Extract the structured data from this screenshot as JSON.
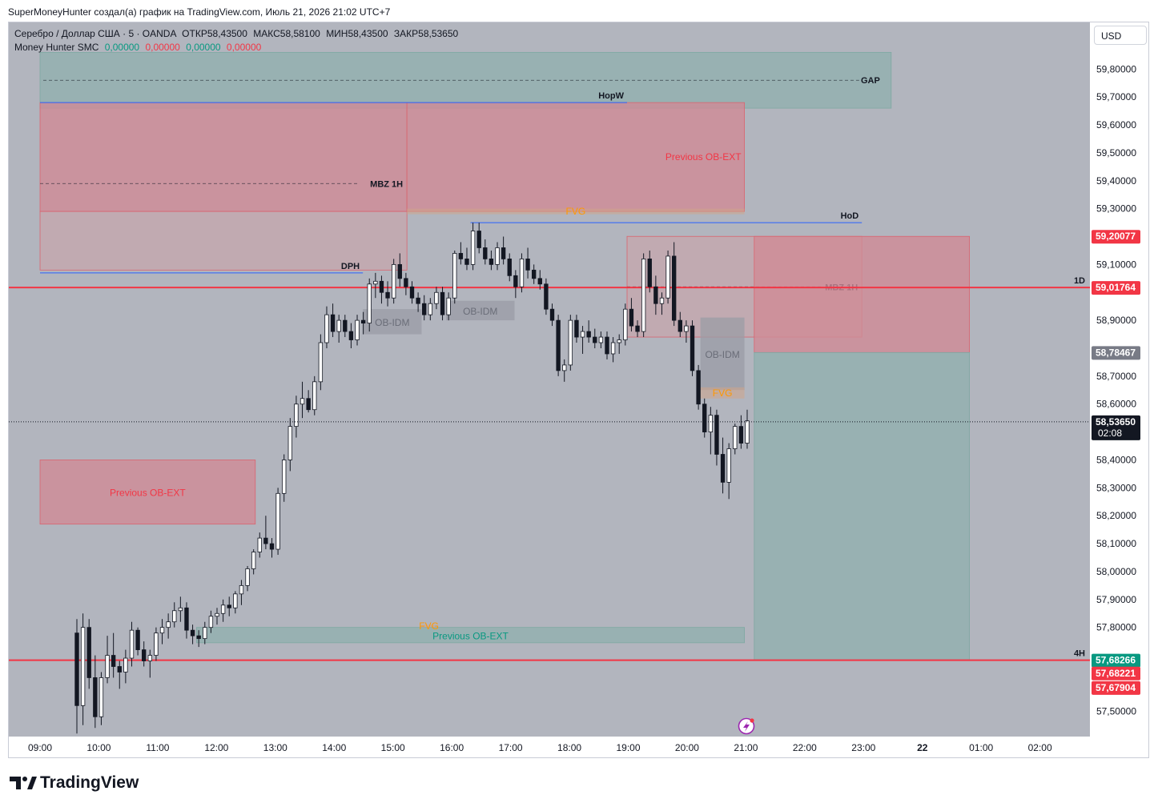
{
  "header": {
    "attribution": "SuperMoneyHunter создал(а) график на TradingView.com, Июль 21, 2026 21:02 UTC+7"
  },
  "legend": {
    "symbol": "Серебро / Доллар США · 5 · OANDA",
    "open_label": "ОТКР",
    "open_value": "58,43500",
    "high_label": "МАКС",
    "high_value": "58,58100",
    "low_label": "МИН",
    "low_value": "58,43500",
    "close_label": "ЗАКР",
    "close_value": "58,53650",
    "indicator_name": "Money Hunter SMC",
    "indicator_values": [
      "0,00000",
      "0,00000",
      "0,00000",
      "0,00000"
    ],
    "indicator_colors": [
      "#089981",
      "#f23645",
      "#089981",
      "#f23645"
    ]
  },
  "currency_button": "USD",
  "branding": "TradingView",
  "colors": {
    "background": "#b2b5be",
    "bull_candle": "#ffffff",
    "bear_candle": "#131722",
    "red_zone": "#d08b96",
    "green_zone": "#8fb0ad",
    "level_red": "#f23645",
    "level_blue": "#2962ff",
    "fvg_text": "#ff9800"
  },
  "chart_data": {
    "type": "candlestick",
    "symbol": "XAGUSD",
    "timeframe": "5",
    "y_axis": {
      "ticks": [
        "59,80000",
        "59,70000",
        "59,60000",
        "59,50000",
        "59,40000",
        "59,30000",
        "59,10000",
        "58,90000",
        "58,70000",
        "58,60000",
        "58,40000",
        "58,30000",
        "58,20000",
        "58,10000",
        "58,00000",
        "57,90000",
        "57,80000",
        "57,50000"
      ],
      "tick_values": [
        59.8,
        59.7,
        59.6,
        59.5,
        59.4,
        59.3,
        59.1,
        58.9,
        58.7,
        58.6,
        58.4,
        58.3,
        58.2,
        58.1,
        58.0,
        57.9,
        57.8,
        57.5
      ]
    },
    "x_axis": {
      "ticks": [
        "09:00",
        "10:00",
        "11:00",
        "12:00",
        "13:00",
        "14:00",
        "15:00",
        "16:00",
        "17:00",
        "18:00",
        "19:00",
        "20:00",
        "21:00",
        "22:00",
        "23:00",
        "22",
        "01:00",
        "02:00"
      ]
    },
    "price_labels": [
      {
        "text": "59,20077",
        "value": 59.20077,
        "color": "#f23645"
      },
      {
        "text": "59,01764",
        "value": 59.01764,
        "color": "#f23645"
      },
      {
        "text": "58,78467",
        "value": 58.78467,
        "color": "#787b86"
      },
      {
        "text": "57,68266",
        "value": 57.68266,
        "color": "#089981"
      },
      {
        "text": "57,68221",
        "value": 57.68221,
        "color": "#f23645"
      },
      {
        "text": "57,67904",
        "value": 57.67904,
        "color": "#f23645"
      }
    ],
    "last_price": {
      "text": "58,53650",
      "value": 58.5365,
      "countdown": "02:08"
    },
    "levels": [
      {
        "label": "HopW",
        "value": 59.68,
        "from": "09:00",
        "to": "19:00",
        "color": "#2962ff"
      },
      {
        "label": "HoD",
        "value": 59.25,
        "from": "16:20",
        "to": "23:00",
        "color": "#2962ff"
      },
      {
        "label": "DPH",
        "value": 59.07,
        "from": "09:00",
        "to": "14:30",
        "color": "#2962ff"
      },
      {
        "label": "1D",
        "value": 59.01764,
        "color": "#f23645"
      },
      {
        "label": "4H",
        "value": 57.68266,
        "color": "#f23645"
      }
    ],
    "zones": [
      {
        "label": "GAP",
        "top": 59.86,
        "bottom": 59.66,
        "from": "09:00",
        "to": "23:30",
        "kind": "green"
      },
      {
        "label": "MBZ 1H",
        "top": 59.68,
        "bottom": 59.29,
        "from": "09:00",
        "to": "15:15",
        "kind": "red",
        "midline": 59.39
      },
      {
        "label": "Previous OB-EXT",
        "top": 59.68,
        "bottom": 59.29,
        "from": "15:15",
        "to": "21:00",
        "kind": "red"
      },
      {
        "label": "",
        "top": 59.29,
        "bottom": 59.08,
        "from": "09:00",
        "to": "15:15",
        "kind": "red-light"
      },
      {
        "label": "FVG",
        "top": 59.3,
        "bottom": 59.28,
        "from": "15:15",
        "to": "21:00",
        "kind": "fvg"
      },
      {
        "label": "OB-IDM",
        "top": 58.94,
        "bottom": 58.85,
        "from": "14:30",
        "to": "15:30",
        "kind": "grey"
      },
      {
        "label": "OB-IDM",
        "top": 58.97,
        "bottom": 58.9,
        "from": "15:55",
        "to": "17:05",
        "kind": "grey"
      },
      {
        "label": "MBZ 1H",
        "top": 59.20077,
        "bottom": 58.84,
        "from": "19:00",
        "to": "23:00",
        "kind": "red-light",
        "midline": 59.02
      },
      {
        "label": "",
        "top": 59.20077,
        "bottom": 58.78467,
        "from": "21:10",
        "to": "00:50",
        "kind": "red"
      },
      {
        "label": "OB-IDM",
        "top": 58.91,
        "bottom": 58.65,
        "from": "20:15",
        "to": "21:00",
        "kind": "grey"
      },
      {
        "label": "FVG",
        "top": 58.66,
        "bottom": 58.62,
        "from": "20:15",
        "to": "21:00",
        "kind": "fvg"
      },
      {
        "label": "",
        "top": 58.78467,
        "bottom": 57.68266,
        "from": "21:10",
        "to": "00:50",
        "kind": "green"
      },
      {
        "label": "Previous OB-EXT",
        "top": 58.4,
        "bottom": 58.17,
        "from": "09:00",
        "to": "12:40",
        "kind": "red"
      },
      {
        "label": "Previous OB-EXT",
        "top": 57.8,
        "bottom": 57.745,
        "from": "11:40",
        "to": "21:00",
        "kind": "green"
      },
      {
        "label": "FVG",
        "top": 57.81,
        "bottom": 57.8,
        "from": "15:30",
        "to": "15:45",
        "kind": "fvg"
      }
    ],
    "candles_approx": [
      [
        57.78,
        57.83,
        57.42,
        57.52
      ],
      [
        57.52,
        57.85,
        57.45,
        57.8
      ],
      [
        57.8,
        57.83,
        57.58,
        57.62
      ],
      [
        57.62,
        57.7,
        57.44,
        57.48
      ],
      [
        57.48,
        57.64,
        57.45,
        57.62
      ],
      [
        57.62,
        57.77,
        57.6,
        57.7
      ],
      [
        57.7,
        57.78,
        57.62,
        57.66
      ],
      [
        57.66,
        57.68,
        57.58,
        57.64
      ],
      [
        57.64,
        57.72,
        57.6,
        57.69
      ],
      [
        57.69,
        57.82,
        57.66,
        57.79
      ],
      [
        57.79,
        57.8,
        57.7,
        57.72
      ],
      [
        57.72,
        57.75,
        57.66,
        57.68
      ],
      [
        57.68,
        57.72,
        57.62,
        57.7
      ],
      [
        57.7,
        57.8,
        57.68,
        57.78
      ],
      [
        57.78,
        57.83,
        57.74,
        57.8
      ],
      [
        57.8,
        57.85,
        57.76,
        57.82
      ],
      [
        57.82,
        57.89,
        57.8,
        57.86
      ],
      [
        57.86,
        57.91,
        57.82,
        57.87
      ],
      [
        57.87,
        57.89,
        57.76,
        57.79
      ],
      [
        57.79,
        57.81,
        57.74,
        57.77
      ],
      [
        57.77,
        57.79,
        57.73,
        57.76
      ],
      [
        57.76,
        57.82,
        57.74,
        57.8
      ],
      [
        57.8,
        57.86,
        57.78,
        57.84
      ],
      [
        57.84,
        57.87,
        57.81,
        57.85
      ],
      [
        57.85,
        57.9,
        57.82,
        57.88
      ],
      [
        57.88,
        57.91,
        57.84,
        57.87
      ],
      [
        57.87,
        57.93,
        57.85,
        57.92
      ],
      [
        57.92,
        57.97,
        57.88,
        57.95
      ],
      [
        57.95,
        58.02,
        57.93,
        58.01
      ],
      [
        58.01,
        58.08,
        57.99,
        58.07
      ],
      [
        58.07,
        58.14,
        58.05,
        58.12
      ],
      [
        58.12,
        58.2,
        58.08,
        58.1
      ],
      [
        58.1,
        58.12,
        58.05,
        58.08
      ],
      [
        58.08,
        58.3,
        58.06,
        58.28
      ],
      [
        58.28,
        58.42,
        58.25,
        58.4
      ],
      [
        58.4,
        58.55,
        58.36,
        58.52
      ],
      [
        58.52,
        58.63,
        58.48,
        58.6
      ],
      [
        58.6,
        58.68,
        58.55,
        58.62
      ],
      [
        58.62,
        58.65,
        58.57,
        58.58
      ],
      [
        58.58,
        58.7,
        58.56,
        58.68
      ],
      [
        58.68,
        58.85,
        58.65,
        58.82
      ],
      [
        58.82,
        58.95,
        58.8,
        58.92
      ],
      [
        58.92,
        58.96,
        58.84,
        58.86
      ],
      [
        58.86,
        58.92,
        58.82,
        58.9
      ],
      [
        58.9,
        58.92,
        58.84,
        58.86
      ],
      [
        58.86,
        58.89,
        58.8,
        58.83
      ],
      [
        58.83,
        58.92,
        58.81,
        58.9
      ],
      [
        58.9,
        58.93,
        58.85,
        58.89
      ],
      [
        58.89,
        59.05,
        58.86,
        59.03
      ],
      [
        59.03,
        59.07,
        58.98,
        59.04
      ],
      [
        59.04,
        59.06,
        58.96,
        59.0
      ],
      [
        59.0,
        59.04,
        58.95,
        58.98
      ],
      [
        58.98,
        59.12,
        58.96,
        59.1
      ],
      [
        59.1,
        59.14,
        59.02,
        59.05
      ],
      [
        59.05,
        59.07,
        58.99,
        59.02
      ],
      [
        59.02,
        59.04,
        58.96,
        58.98
      ],
      [
        58.98,
        59.0,
        58.93,
        58.96
      ],
      [
        58.96,
        58.99,
        58.9,
        58.92
      ],
      [
        58.92,
        58.98,
        58.9,
        58.96
      ],
      [
        58.96,
        59.02,
        58.94,
        59.0
      ],
      [
        59.0,
        59.02,
        58.9,
        58.92
      ],
      [
        58.92,
        59.0,
        58.9,
        58.98
      ],
      [
        58.98,
        59.15,
        58.96,
        59.14
      ],
      [
        59.14,
        59.18,
        59.1,
        59.12
      ],
      [
        59.12,
        59.16,
        59.08,
        59.1
      ],
      [
        59.1,
        59.25,
        59.08,
        59.22
      ],
      [
        59.22,
        59.25,
        59.14,
        59.16
      ],
      [
        59.16,
        59.19,
        59.1,
        59.12
      ],
      [
        59.12,
        59.15,
        59.08,
        59.1
      ],
      [
        59.1,
        59.18,
        59.08,
        59.16
      ],
      [
        59.16,
        59.2,
        59.1,
        59.12
      ],
      [
        59.12,
        59.14,
        59.04,
        59.06
      ],
      [
        59.06,
        59.08,
        58.98,
        59.02
      ],
      [
        59.02,
        59.14,
        59.0,
        59.12
      ],
      [
        59.12,
        59.16,
        59.05,
        59.08
      ],
      [
        59.08,
        59.1,
        59.03,
        59.05
      ],
      [
        59.05,
        59.08,
        59.01,
        59.03
      ],
      [
        59.03,
        59.05,
        58.92,
        58.94
      ],
      [
        58.94,
        58.96,
        58.88,
        58.9
      ],
      [
        58.9,
        58.92,
        58.7,
        58.72
      ],
      [
        58.72,
        58.76,
        58.68,
        58.74
      ],
      [
        58.74,
        58.92,
        58.72,
        58.9
      ],
      [
        58.9,
        58.92,
        58.82,
        58.84
      ],
      [
        58.84,
        58.88,
        58.78,
        58.86
      ],
      [
        58.86,
        58.9,
        58.82,
        58.84
      ],
      [
        58.84,
        58.87,
        58.8,
        58.82
      ],
      [
        58.82,
        58.86,
        58.8,
        58.84
      ],
      [
        58.84,
        58.86,
        58.76,
        58.78
      ],
      [
        58.78,
        58.84,
        58.75,
        58.82
      ],
      [
        58.82,
        58.85,
        58.78,
        58.83
      ],
      [
        58.83,
        58.96,
        58.81,
        58.94
      ],
      [
        58.94,
        58.98,
        58.86,
        58.88
      ],
      [
        58.88,
        58.9,
        58.84,
        58.86
      ],
      [
        58.86,
        59.14,
        58.84,
        59.12
      ],
      [
        59.12,
        59.15,
        59.0,
        59.02
      ],
      [
        59.02,
        59.06,
        58.92,
        58.96
      ],
      [
        58.96,
        59.0,
        58.92,
        58.98
      ],
      [
        58.98,
        59.15,
        58.96,
        59.13
      ],
      [
        59.13,
        59.18,
        58.88,
        58.9
      ],
      [
        58.9,
        58.93,
        58.84,
        58.86
      ],
      [
        58.86,
        58.9,
        58.82,
        58.88
      ],
      [
        58.88,
        58.9,
        58.7,
        58.72
      ],
      [
        58.72,
        58.74,
        58.58,
        58.6
      ],
      [
        58.6,
        58.62,
        58.48,
        58.5
      ],
      [
        58.5,
        58.59,
        58.42,
        58.56
      ],
      [
        58.56,
        58.58,
        58.38,
        58.42
      ],
      [
        58.42,
        58.48,
        58.28,
        58.32
      ],
      [
        58.32,
        58.46,
        58.26,
        58.44
      ],
      [
        58.44,
        58.53,
        58.42,
        58.52
      ],
      [
        58.52,
        58.56,
        58.44,
        58.46
      ],
      [
        58.46,
        58.58,
        58.44,
        58.54
      ]
    ]
  }
}
